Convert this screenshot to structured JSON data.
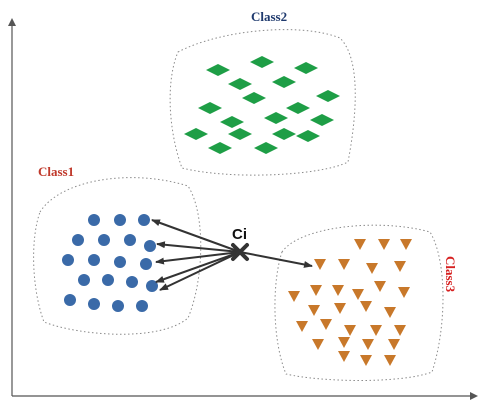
{
  "diagram": {
    "labels": {
      "class1": "Class1",
      "class2": "Class2",
      "class3": "Class3",
      "query": "Ci"
    },
    "colors": {
      "class1_text": "#c0392b",
      "class2_text": "#1f3a6e",
      "class3_text": "#d62020",
      "class1_marker": "#3a6aa8",
      "class2_marker": "#1e9e46",
      "class3_marker": "#c8782a",
      "boundary": "#8a8a8a",
      "arrow": "#333333",
      "axis": "#555555"
    },
    "markers": {
      "class1": "circle",
      "class2": "diamond",
      "class3": "triangle-down",
      "query": "cross"
    }
  }
}
